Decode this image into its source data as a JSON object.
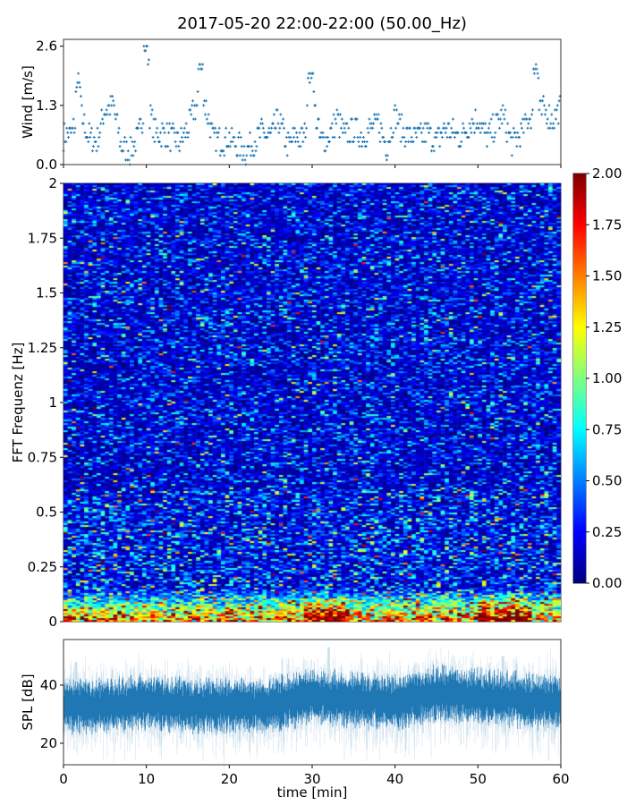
{
  "title": "2017-05-20 22:00-22:00 (50.00_Hz)",
  "chart_data": [
    {
      "type": "scatter",
      "ylabel": "Wind [m/s]",
      "xlim": [
        0,
        60
      ],
      "ylim": [
        0,
        2.75
      ],
      "yticks": [
        0.0,
        1.3,
        2.6
      ],
      "ytick_labels": [
        "0.0",
        "1.3",
        "2.6"
      ],
      "xticks": [
        0,
        10,
        20,
        30,
        40,
        50,
        60
      ],
      "marker": "+",
      "color": "#1f77b4",
      "resolution": 0.1,
      "x_minutes": [
        0,
        1,
        2,
        3,
        4,
        5,
        6,
        7,
        8,
        9,
        10,
        11,
        12,
        13,
        14,
        15,
        16,
        17,
        18,
        19,
        20,
        21,
        22,
        23,
        24,
        25,
        26,
        27,
        28,
        29,
        30,
        31,
        32,
        33,
        34,
        35,
        36,
        37,
        38,
        39,
        40,
        41,
        42,
        43,
        44,
        45,
        46,
        47,
        48,
        49,
        50,
        51,
        52,
        53,
        54,
        55,
        56,
        57,
        58,
        59,
        60
      ],
      "wind_ms_approx": [
        0.6,
        0.7,
        1.2,
        0.6,
        0.5,
        1.2,
        1.3,
        0.4,
        0.3,
        0.6,
        1.4,
        0.7,
        0.7,
        0.6,
        0.5,
        0.8,
        1.3,
        1.4,
        0.6,
        0.5,
        0.6,
        0.4,
        0.3,
        0.5,
        0.7,
        0.6,
        1.0,
        0.4,
        0.6,
        0.6,
        1.6,
        0.5,
        0.6,
        1.0,
        0.6,
        0.8,
        0.6,
        0.8,
        0.9,
        0.4,
        1.1,
        0.7,
        0.6,
        0.6,
        0.7,
        0.5,
        0.8,
        0.7,
        0.6,
        0.9,
        1.0,
        0.6,
        0.8,
        1.1,
        0.5,
        0.6,
        1.0,
        1.1,
        1.2,
        1.0,
        1.3
      ],
      "peaks": [
        {
          "x": 10,
          "y": 2.6
        },
        {
          "x": 16.5,
          "y": 2.2
        },
        {
          "x": 57,
          "y": 2.2
        },
        {
          "x": 1.8,
          "y": 2.0
        },
        {
          "x": 29.8,
          "y": 2.0
        }
      ]
    },
    {
      "type": "heatmap",
      "ylabel": "FFT Frequenz [Hz]",
      "xlim": [
        0,
        60
      ],
      "ylim": [
        0,
        2
      ],
      "yticks": [
        0,
        0.25,
        0.5,
        0.75,
        1,
        1.25,
        1.5,
        1.75,
        2
      ],
      "ytick_labels": [
        "0",
        "0.25",
        "0.5",
        "0.75",
        "1",
        "1.25",
        "1.5",
        "1.75",
        "2"
      ],
      "colormap": "jet",
      "clim": [
        0,
        2
      ],
      "colorbar_ticks": [
        "0.00",
        "0.25",
        "0.50",
        "0.75",
        "1.00",
        "1.25",
        "1.50",
        "1.75",
        "2.00"
      ],
      "typical_level": 0.3,
      "low_frequency_level": 1.2,
      "low_frequency_band_hz": [
        0,
        0.15
      ],
      "hot_intervals_min": [
        [
          29,
          34
        ],
        [
          50,
          56
        ]
      ]
    },
    {
      "type": "line",
      "ylabel": "SPL [dB]",
      "xlabel": "time [min]",
      "xlim": [
        0,
        60
      ],
      "ylim": [
        12.6,
        55.7
      ],
      "yticks": [
        20,
        40
      ],
      "ytick_labels": [
        "20",
        "40"
      ],
      "xticks": [
        0,
        10,
        20,
        30,
        40,
        50,
        60
      ],
      "xtick_labels": [
        "0",
        "10",
        "20",
        "30",
        "40",
        "50",
        "60"
      ],
      "color": "#1f77b4",
      "x_minutes": [
        0,
        5,
        10,
        15,
        20,
        25,
        30,
        35,
        40,
        45,
        50,
        55,
        60
      ],
      "mean_db_approx": [
        33,
        33,
        34,
        33,
        33,
        33,
        36,
        35,
        34,
        37,
        36,
        35,
        34
      ],
      "spikes": [
        {
          "x": 1.5,
          "y": 48
        },
        {
          "x": 32,
          "y": 53
        },
        {
          "x": 53,
          "y": 50
        }
      ]
    }
  ]
}
